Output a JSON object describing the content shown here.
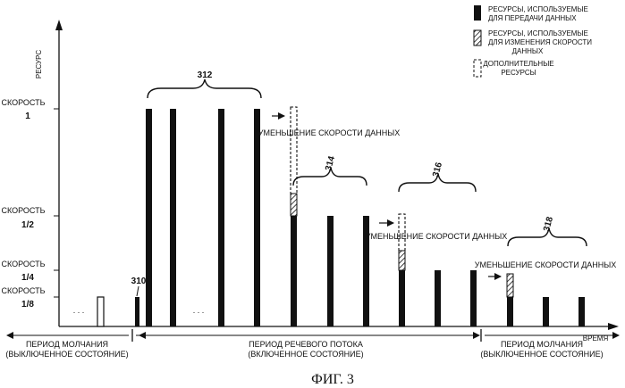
{
  "figure": {
    "caption": "ФИГ. 3",
    "y_axis_label": "РЕСУРС",
    "x_axis_label": "ВРЕМЯ",
    "levels": [
      {
        "word": "СКОРОСТЬ",
        "value": "1"
      },
      {
        "word": "СКОРОСТЬ",
        "value": "1/2"
      },
      {
        "word": "СКОРОСТЬ",
        "value": "1/4"
      },
      {
        "word": "СКОРОСТЬ",
        "value": "1/8"
      }
    ],
    "legend": [
      {
        "pattern": "solid",
        "lines": [
          "РЕСУРСЫ, ИСПОЛЬЗУЕМЫЕ",
          "ДЛЯ ПЕРЕДАЧИ ДАННЫХ"
        ]
      },
      {
        "pattern": "hatched",
        "lines": [
          "РЕСУРСЫ, ИСПОЛЬЗУЕМЫЕ",
          "ДЛЯ ИЗМЕНЕНИЯ СКОРОСТИ",
          "ДАННЫХ"
        ]
      },
      {
        "pattern": "dashed",
        "lines": [
          "ДОПОЛНИТЕЛЬНЫЕ",
          "РЕСУРСЫ"
        ]
      }
    ],
    "group_labels": {
      "g310": "310",
      "g312": "312",
      "g314": "314",
      "g316": "316",
      "g318": "318"
    },
    "rate_reduction_label": "УМЕНЬШЕНИЕ СКОРОСТИ ДАННЫХ",
    "ellipsis": ". . .",
    "periods": {
      "silence_left": [
        "ПЕРИОД МОЛЧАНИЯ",
        "(ВЫКЛЮЧЕННОЕ СОСТОЯНИЕ)"
      ],
      "speech": [
        "ПЕРИОД РЕЧЕВОГО ПОТОКА",
        "(ВКЛЮЧЕННОЕ СОСТОЯНИЕ)"
      ],
      "silence_right": [
        "ПЕРИОД МОЛЧАНИЯ",
        "(ВЫКЛЮЧЕННОЕ СОСТОЯНИЕ)"
      ]
    }
  }
}
